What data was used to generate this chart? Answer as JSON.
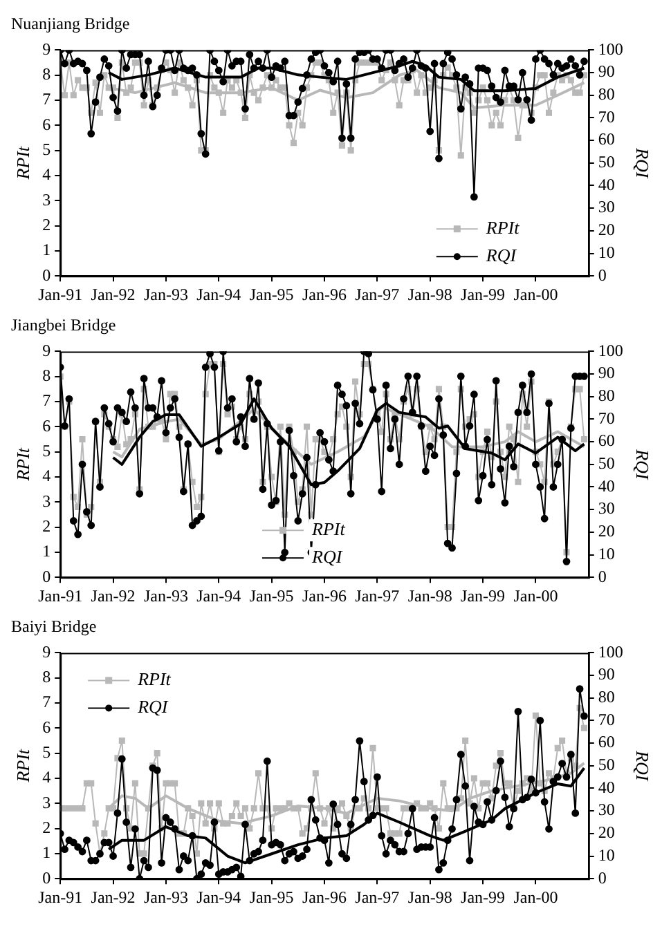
{
  "chart_data": [
    {
      "type": "line",
      "title": "Nuanjiang Bridge",
      "ylabel": "RPIt",
      "y2label": "RQI",
      "legend": "bottom right",
      "x": [
        "1991-01",
        "1991-02",
        "1991-03",
        "1991-04",
        "1991-05",
        "1991-06",
        "1991-07",
        "1991-08",
        "1991-09",
        "1991-10",
        "1991-11",
        "1991-12",
        "1992-01",
        "1992-02",
        "1992-03",
        "1992-04",
        "1992-05",
        "1992-06",
        "1992-07",
        "1992-08",
        "1992-09",
        "1992-10",
        "1992-11",
        "1992-12",
        "1993-01",
        "1993-02",
        "1993-03",
        "1993-04",
        "1993-05",
        "1993-06",
        "1993-07",
        "1993-08",
        "1993-09",
        "1993-10",
        "1993-11",
        "1993-12",
        "1994-01",
        "1994-02",
        "1994-03",
        "1994-04",
        "1994-05",
        "1994-06",
        "1994-07",
        "1994-08",
        "1994-09",
        "1994-10",
        "1994-11",
        "1994-12",
        "1995-01",
        "1995-02",
        "1995-03",
        "1995-04",
        "1995-05",
        "1995-06",
        "1995-07",
        "1995-08",
        "1995-09",
        "1995-10",
        "1995-11",
        "1995-12",
        "1996-01",
        "1996-02",
        "1996-03",
        "1996-04",
        "1996-05",
        "1996-06",
        "1996-07",
        "1996-08",
        "1996-09",
        "1996-10",
        "1996-11",
        "1996-12",
        "1997-01",
        "1997-02",
        "1997-03",
        "1997-04",
        "1997-05",
        "1997-06",
        "1997-07",
        "1997-08",
        "1997-09",
        "1997-10",
        "1997-11",
        "1997-12",
        "1998-01",
        "1998-02",
        "1998-03",
        "1998-04",
        "1998-05",
        "1998-06",
        "1998-07",
        "1998-08",
        "1998-09",
        "1998-10",
        "1998-11",
        "1998-12",
        "1999-01",
        "1999-02",
        "1999-03",
        "1999-04",
        "1999-05",
        "1999-06",
        "1999-07",
        "1999-08",
        "1999-09",
        "1999-10",
        "1999-11",
        "1999-12",
        "2000-01",
        "2000-02",
        "2000-03",
        "2000-04",
        "2000-05",
        "2000-06",
        "2000-07",
        "2000-08",
        "2000-09",
        "2000-10",
        "2000-11",
        "2000-12"
      ],
      "xlim": [
        "1991-01",
        "2001-01"
      ],
      "xticks": [
        {
          "value": "1991-01",
          "label": "Jan-91"
        },
        {
          "value": "1992-01",
          "label": "Jan-92"
        },
        {
          "value": "1993-01",
          "label": "Jan-93"
        },
        {
          "value": "1994-01",
          "label": "Jan-94"
        },
        {
          "value": "1995-01",
          "label": "Jan-95"
        },
        {
          "value": "1996-01",
          "label": "Jan-96"
        },
        {
          "value": "1997-01",
          "label": "Jan-97"
        },
        {
          "value": "1998-01",
          "label": "Jan-98"
        },
        {
          "value": "1999-01",
          "label": "Jan-99"
        },
        {
          "value": "2000-01",
          "label": "Jan-00"
        }
      ],
      "ylim": [
        0,
        9
      ],
      "yticks": [
        0,
        1,
        2,
        3,
        4,
        5,
        6,
        7,
        8,
        9
      ],
      "y2lim": [
        0,
        100
      ],
      "y2ticks": [
        0,
        10,
        20,
        30,
        40,
        50,
        60,
        70,
        80,
        90,
        100
      ],
      "series": [
        {
          "name": "RPIt",
          "color": "#b8b8b8",
          "marker": "square",
          "values": [
            8.5,
            7.2,
            8.5,
            7.2,
            7.8,
            7.5,
            7.5,
            6.5,
            7.7,
            6.5,
            8.0,
            7.5,
            7.5,
            6.3,
            8.5,
            7.3,
            7.5,
            8.5,
            8.5,
            6.8,
            7.8,
            6.8,
            7.5,
            8.2,
            8.5,
            8.2,
            7.3,
            8.5,
            7.8,
            7.5,
            6.8,
            7.8,
            5.0,
            5.0,
            8.0,
            7.5,
            7.3,
            6.5,
            7.8,
            7.5,
            7.8,
            7.3,
            6.3,
            8.0,
            7.3,
            7.0,
            7.5,
            8.0,
            7.5,
            7.8,
            7.5,
            7.5,
            6.0,
            5.3,
            6.5,
            6.0,
            7.5,
            8.0,
            8.5,
            8.5,
            8.0,
            7.8,
            6.5,
            7.3,
            5.2,
            7.3,
            5.0,
            7.8,
            8.5,
            8.5,
            8.5,
            8.5,
            8.5,
            7.8,
            8.2,
            8.5,
            7.8,
            6.8,
            7.8,
            7.8,
            8.2,
            7.3,
            8.0,
            7.3,
            7.5,
            7.8,
            5.0,
            8.0,
            8.3,
            8.0,
            7.5,
            4.8,
            7.5,
            7.3,
            6.5,
            7.0,
            7.5,
            7.0,
            6.0,
            6.5,
            6.0,
            7.0,
            7.5,
            7.0,
            5.5,
            6.8,
            6.8,
            6.5,
            7.5,
            8.0,
            8.0,
            6.5,
            7.3,
            8.0,
            7.8,
            8.0,
            7.8,
            7.3,
            7.3,
            8.0
          ]
        },
        {
          "name": "RQI",
          "color": "#000000",
          "marker": "circle",
          "axis": "y2",
          "values": [
            100,
            94,
            100,
            94,
            95,
            94,
            91,
            63,
            77,
            88,
            96,
            93,
            79,
            73,
            100,
            92,
            98,
            98,
            98,
            80,
            95,
            75,
            80,
            92,
            100,
            100,
            91,
            100,
            92,
            91,
            92,
            89,
            63,
            54,
            100,
            95,
            91,
            86,
            100,
            93,
            95,
            95,
            74,
            98,
            92,
            95,
            92,
            100,
            88,
            93,
            92,
            95,
            71,
            71,
            77,
            83,
            89,
            96,
            99,
            100,
            93,
            90,
            86,
            95,
            61,
            85,
            61,
            96,
            99,
            99,
            100,
            96,
            96,
            92,
            100,
            100,
            91,
            94,
            96,
            88,
            92,
            100,
            93,
            92,
            64,
            94,
            52,
            94,
            99,
            96,
            89,
            74,
            88,
            85,
            35,
            92,
            92,
            91,
            84,
            79,
            77,
            91,
            84,
            84,
            78,
            90,
            78,
            69,
            96,
            100,
            96,
            94,
            89,
            94,
            92,
            93,
            96,
            93,
            89,
            95
          ]
        },
        {
          "color": "#b8b8b8",
          "marker": "none",
          "x": [
            "1991-12",
            "1992-06",
            "1993-03",
            "1993-10",
            "1994-06",
            "1995-01",
            "1995-07",
            "1995-12",
            "1996-06",
            "1996-12",
            "1997-06",
            "1997-10",
            "1998-03",
            "1998-08",
            "1998-11",
            "1999-06",
            "2000-01",
            "2000-06",
            "2000-12"
          ],
          "values": [
            7.5,
            7.3,
            7.7,
            7.3,
            7.3,
            7.5,
            7.0,
            7.4,
            7.1,
            7.3,
            8.0,
            8.2,
            7.5,
            7.3,
            6.7,
            6.8,
            6.8,
            7.2,
            7.7
          ]
        },
        {
          "color": "#000000",
          "marker": "none",
          "axis": "y2",
          "x": [
            "1991-12",
            "1992-03",
            "1992-09",
            "1993-03",
            "1993-10",
            "1994-06",
            "1994-10",
            "1995-01",
            "1995-07",
            "1995-12",
            "1996-06",
            "1996-12",
            "1997-06",
            "1997-09",
            "1997-12",
            "1998-03",
            "1998-08",
            "1998-11",
            "1999-06",
            "2000-01",
            "2000-06",
            "2000-12"
          ],
          "values": [
            90,
            87,
            89,
            92,
            88,
            88,
            92,
            92,
            89,
            88,
            87,
            90,
            93,
            95,
            93,
            88,
            87,
            82,
            82,
            83,
            88,
            92
          ]
        }
      ]
    },
    {
      "type": "line",
      "title": "Jiangbei Bridge",
      "ylabel": "RPIt",
      "y2label": "RQI",
      "legend": "bottom",
      "x": [
        "1991-01",
        "1991-02",
        "1991-03",
        "1991-04",
        "1991-05",
        "1991-06",
        "1991-07",
        "1991-08",
        "1991-09",
        "1991-10",
        "1991-11",
        "1991-12",
        "1992-01",
        "1992-02",
        "1992-03",
        "1992-04",
        "1992-05",
        "1992-06",
        "1992-07",
        "1992-08",
        "1992-09",
        "1992-10",
        "1992-11",
        "1992-12",
        "1993-01",
        "1993-02",
        "1993-03",
        "1993-04",
        "1993-05",
        "1993-06",
        "1993-07",
        "1993-08",
        "1993-09",
        "1993-10",
        "1993-11",
        "1993-12",
        "1994-01",
        "1994-02",
        "1994-03",
        "1994-04",
        "1994-05",
        "1994-06",
        "1994-07",
        "1994-08",
        "1994-09",
        "1994-10",
        "1994-11",
        "1994-12",
        "1995-01",
        "1995-02",
        "1995-03",
        "1995-04",
        "1995-05",
        "1995-06",
        "1995-07",
        "1995-08",
        "1995-09",
        "1995-10",
        "1995-11",
        "1995-12",
        "1996-01",
        "1996-02",
        "1996-03",
        "1996-04",
        "1996-05",
        "1996-06",
        "1996-07",
        "1996-08",
        "1996-09",
        "1996-10",
        "1996-11",
        "1996-12",
        "1997-01",
        "1997-02",
        "1997-03",
        "1997-04",
        "1997-05",
        "1997-06",
        "1997-07",
        "1997-08",
        "1997-09",
        "1997-10",
        "1997-11",
        "1997-12",
        "1998-01",
        "1998-02",
        "1998-03",
        "1998-04",
        "1998-05",
        "1998-06",
        "1998-07",
        "1998-08",
        "1998-09",
        "1998-10",
        "1998-11",
        "1998-12",
        "1999-01",
        "1999-02",
        "1999-03",
        "1999-04",
        "1999-05",
        "1999-06",
        "1999-07",
        "1999-08",
        "1999-09",
        "1999-10",
        "1999-11",
        "1999-12",
        "2000-01",
        "2000-02",
        "2000-03",
        "2000-04",
        "2000-05",
        "2000-06",
        "2000-07",
        "2000-08",
        "2000-09",
        "2000-10",
        "2000-11",
        "2000-12"
      ],
      "xlim": [
        "1991-01",
        "2001-01"
      ],
      "xticks": [
        {
          "value": "1991-01",
          "label": "Jan-91"
        },
        {
          "value": "1992-01",
          "label": "Jan-92"
        },
        {
          "value": "1993-01",
          "label": "Jan-93"
        },
        {
          "value": "1994-01",
          "label": "Jan-94"
        },
        {
          "value": "1995-01",
          "label": "Jan-95"
        },
        {
          "value": "1996-01",
          "label": "Jan-96"
        },
        {
          "value": "1997-01",
          "label": "Jan-97"
        },
        {
          "value": "1998-01",
          "label": "Jan-98"
        },
        {
          "value": "1999-01",
          "label": "Jan-99"
        },
        {
          "value": "2000-01",
          "label": "Jan-00"
        }
      ],
      "ylim": [
        0,
        9
      ],
      "yticks": [
        0,
        1,
        2,
        3,
        4,
        5,
        6,
        7,
        8,
        9
      ],
      "y2lim": [
        0,
        100
      ],
      "y2ticks": [
        0,
        10,
        20,
        30,
        40,
        50,
        60,
        70,
        80,
        90,
        100
      ],
      "series": [
        {
          "name": "RPIt",
          "color": "#b8b8b8",
          "marker": "square",
          "values": [
            8.0,
            6.0,
            7.0,
            3.2,
            2.8,
            5.5,
            2.5,
            2.8,
            6.2,
            3.8,
            6.5,
            6.0,
            5.5,
            5.2,
            6.5,
            5.3,
            5.5,
            6.5,
            3.5,
            7.5,
            6.0,
            6.0,
            6.3,
            6.3,
            5.5,
            7.3,
            7.3,
            6.0,
            3.5,
            5.3,
            3.8,
            2.8,
            3.2,
            7.3,
            8.5,
            8.5,
            5.0,
            8.5,
            6.5,
            6.8,
            5.5,
            6.0,
            5.5,
            7.3,
            6.3,
            7.0,
            3.8,
            6.0,
            4.0,
            3.0,
            6.0,
            2.5,
            6.0,
            5.0,
            3.0,
            3.5,
            6.0,
            2.5,
            5.5,
            5.5,
            5.0,
            4.8,
            5.5,
            6.5,
            6.8,
            6.0,
            4.0,
            7.8,
            6.5,
            8.5,
            8.5,
            7.5,
            6.5,
            5.8,
            7.3,
            5.5,
            6.5,
            5.5,
            7.0,
            7.5,
            6.5,
            7.5,
            6.0,
            5.0,
            6.0,
            5.5,
            7.5,
            6.0,
            2.0,
            2.0,
            5.0,
            7.5,
            6.0,
            6.3,
            6.5,
            4.0,
            5.0,
            5.8,
            4.8,
            7.0,
            5.0,
            4.0,
            6.0,
            5.5,
            3.8,
            7.3,
            6.0,
            7.8,
            5.0,
            4.5,
            3.8,
            7.0,
            4.5,
            5.0,
            5.5,
            1.0,
            6.0,
            7.5,
            7.5,
            5.5
          ]
        },
        {
          "name": "RQI",
          "color": "#000000",
          "marker": "circle",
          "axis": "y2",
          "values": [
            93,
            67,
            79,
            25,
            19,
            50,
            29,
            23,
            69,
            40,
            75,
            68,
            60,
            75,
            73,
            69,
            82,
            75,
            37,
            88,
            75,
            75,
            71,
            87,
            64,
            75,
            79,
            62,
            38,
            59,
            23,
            25,
            27,
            93,
            99,
            93,
            56,
            100,
            75,
            79,
            60,
            71,
            58,
            88,
            70,
            86,
            39,
            68,
            32,
            34,
            60,
            11,
            65,
            45,
            25,
            37,
            53,
            11,
            41,
            64,
            60,
            52,
            47,
            85,
            81,
            76,
            37,
            77,
            68,
            100,
            99,
            83,
            70,
            38,
            85,
            57,
            70,
            50,
            79,
            89,
            73,
            89,
            67,
            47,
            58,
            54,
            79,
            63,
            15,
            13,
            46,
            89,
            58,
            67,
            81,
            34,
            45,
            61,
            41,
            87,
            48,
            33,
            58,
            49,
            73,
            85,
            73,
            90,
            50,
            40,
            26,
            77,
            40,
            50,
            61,
            7,
            66,
            89,
            89,
            89
          ]
        },
        {
          "color": "#b8b8b8",
          "marker": "none",
          "x": [
            "1992-01",
            "1992-03",
            "1992-07",
            "1993-01",
            "1993-04",
            "1993-09",
            "1994-01",
            "1994-09",
            "1995-03",
            "1995-10",
            "1996-04",
            "1996-10",
            "1997-02",
            "1997-06",
            "1998-01",
            "1998-06",
            "1999-01",
            "1999-06",
            "1999-09",
            "2000-01",
            "2000-06",
            "2000-12"
          ],
          "values": [
            5.0,
            4.8,
            5.9,
            6.2,
            6.3,
            5.3,
            5.5,
            6.7,
            5.6,
            4.5,
            5.0,
            5.6,
            6.8,
            6.5,
            6.0,
            5.2,
            5.2,
            5.4,
            5.8,
            5.4,
            5.8,
            5.2
          ]
        },
        {
          "color": "#000000",
          "marker": "none",
          "axis": "y2",
          "x": [
            "1992-01",
            "1992-03",
            "1992-07",
            "1992-10",
            "1993-01",
            "1993-04",
            "1993-09",
            "1994-01",
            "1994-06",
            "1994-09",
            "1995-01",
            "1995-05",
            "1995-10",
            "1996-01",
            "1996-04",
            "1996-09",
            "1997-01",
            "1997-03",
            "1997-06",
            "1997-12",
            "1998-03",
            "1998-05",
            "1998-09",
            "1999-03",
            "1999-06",
            "1999-09",
            "2000-01",
            "2000-06",
            "2000-10",
            "2000-12"
          ],
          "values": [
            53,
            50,
            62,
            69,
            72,
            72,
            58,
            62,
            68,
            79,
            66,
            58,
            41,
            42,
            47,
            57,
            74,
            77,
            73,
            71,
            66,
            67,
            57,
            55,
            52,
            59,
            55,
            62,
            56,
            59
          ]
        }
      ]
    },
    {
      "type": "line",
      "title": "Baiyi Bridge",
      "ylabel": "RPIt",
      "y2label": "RQI",
      "legend": "top left",
      "x": [
        "1991-01",
        "1991-02",
        "1991-03",
        "1991-04",
        "1991-05",
        "1991-06",
        "1991-07",
        "1991-08",
        "1991-09",
        "1991-10",
        "1991-11",
        "1991-12",
        "1992-01",
        "1992-02",
        "1992-03",
        "1992-04",
        "1992-05",
        "1992-06",
        "1992-07",
        "1992-08",
        "1992-09",
        "1992-10",
        "1992-11",
        "1992-12",
        "1993-01",
        "1993-02",
        "1993-03",
        "1993-04",
        "1993-05",
        "1993-06",
        "1993-07",
        "1993-08",
        "1993-09",
        "1993-10",
        "1993-11",
        "1993-12",
        "1994-01",
        "1994-02",
        "1994-03",
        "1994-04",
        "1994-05",
        "1994-06",
        "1994-07",
        "1994-08",
        "1994-09",
        "1994-10",
        "1994-11",
        "1994-12",
        "1995-01",
        "1995-02",
        "1995-03",
        "1995-04",
        "1995-05",
        "1995-06",
        "1995-07",
        "1995-08",
        "1995-09",
        "1995-10",
        "1995-11",
        "1995-12",
        "1996-01",
        "1996-02",
        "1996-03",
        "1996-04",
        "1996-05",
        "1996-06",
        "1996-07",
        "1996-08",
        "1996-09",
        "1996-10",
        "1996-11",
        "1996-12",
        "1997-01",
        "1997-02",
        "1997-03",
        "1997-04",
        "1997-05",
        "1997-06",
        "1997-07",
        "1997-08",
        "1997-09",
        "1997-10",
        "1997-11",
        "1997-12",
        "1998-01",
        "1998-02",
        "1998-03",
        "1998-04",
        "1998-05",
        "1998-06",
        "1998-07",
        "1998-08",
        "1998-09",
        "1998-10",
        "1998-11",
        "1998-12",
        "1999-01",
        "1999-02",
        "1999-03",
        "1999-04",
        "1999-05",
        "1999-06",
        "1999-07",
        "1999-08",
        "1999-09",
        "1999-10",
        "1999-11",
        "1999-12",
        "2000-01",
        "2000-02",
        "2000-03",
        "2000-04",
        "2000-05",
        "2000-06",
        "2000-07",
        "2000-08",
        "2000-09",
        "2000-10",
        "2000-11",
        "2000-12"
      ],
      "xlim": [
        "1991-01",
        "2001-01"
      ],
      "xticks": [
        {
          "value": "1991-01",
          "label": "Jan-91"
        },
        {
          "value": "1992-01",
          "label": "Jan-92"
        },
        {
          "value": "1993-01",
          "label": "Jan-93"
        },
        {
          "value": "1994-01",
          "label": "Jan-94"
        },
        {
          "value": "1995-01",
          "label": "Jan-95"
        },
        {
          "value": "1996-01",
          "label": "Jan-96"
        },
        {
          "value": "1997-01",
          "label": "Jan-97"
        },
        {
          "value": "1998-01",
          "label": "Jan-98"
        },
        {
          "value": "1999-01",
          "label": "Jan-99"
        },
        {
          "value": "2000-01",
          "label": "Jan-00"
        }
      ],
      "ylim": [
        0,
        9
      ],
      "yticks": [
        0,
        1,
        2,
        3,
        4,
        5,
        6,
        7,
        8,
        9
      ],
      "y2lim": [
        0,
        100
      ],
      "y2ticks": [
        0,
        10,
        20,
        30,
        40,
        50,
        60,
        70,
        80,
        90,
        100
      ],
      "series": [
        {
          "name": "RPIt",
          "color": "#b8b8b8",
          "marker": "square",
          "values": [
            2.8,
            2.8,
            2.8,
            2.8,
            2.8,
            2.8,
            3.8,
            3.8,
            2.2,
            1.0,
            1.8,
            2.8,
            2.8,
            4.8,
            5.5,
            2.8,
            2.0,
            3.8,
            1.0,
            1.0,
            2.8,
            4.5,
            5.0,
            2.0,
            3.8,
            3.8,
            3.8,
            1.8,
            1.8,
            2.8,
            2.5,
            1.0,
            3.0,
            2.2,
            3.0,
            2.0,
            3.0,
            2.2,
            2.2,
            2.5,
            3.0,
            2.5,
            2.8,
            2.0,
            2.8,
            4.2,
            2.8,
            2.8,
            2.0,
            2.8,
            2.8,
            2.8,
            3.0,
            2.8,
            2.8,
            1.8,
            2.0,
            2.8,
            4.2,
            2.8,
            2.2,
            2.8,
            2.0,
            2.8,
            3.0,
            2.5,
            2.0,
            2.8,
            2.8,
            3.2,
            2.8,
            5.2,
            2.8,
            2.8,
            2.8,
            1.8,
            1.8,
            1.8,
            2.8,
            2.8,
            2.8,
            3.0,
            2.8,
            2.8,
            3.0,
            2.8,
            2.0,
            3.8,
            2.8,
            2.8,
            2.8,
            3.2,
            5.5,
            3.0,
            4.0,
            2.8,
            3.8,
            3.8,
            3.2,
            4.5,
            5.0,
            3.8,
            3.8,
            2.8,
            3.5,
            3.8,
            4.0,
            3.5,
            6.5,
            3.8,
            3.5,
            4.2,
            4.0,
            5.2,
            5.5,
            4.2,
            4.8,
            4.5,
            6.8,
            6.0
          ]
        },
        {
          "name": "RQI",
          "color": "#000000",
          "marker": "circle",
          "axis": "y2",
          "values": [
            20,
            13,
            17,
            16,
            14,
            12,
            17,
            8,
            8,
            11,
            16,
            16,
            10,
            29,
            53,
            25,
            5,
            22,
            0,
            8,
            5,
            49,
            48,
            7,
            27,
            25,
            22,
            4,
            10,
            8,
            19,
            0,
            2,
            7,
            6,
            25,
            2,
            3,
            3,
            4,
            5,
            1,
            24,
            8,
            11,
            12,
            17,
            52,
            15,
            16,
            15,
            8,
            11,
            12,
            9,
            10,
            13,
            35,
            26,
            18,
            17,
            7,
            33,
            24,
            11,
            9,
            24,
            35,
            61,
            43,
            26,
            28,
            45,
            19,
            11,
            17,
            15,
            12,
            12,
            20,
            31,
            13,
            14,
            14,
            14,
            27,
            4,
            7,
            17,
            22,
            35,
            55,
            41,
            8,
            32,
            25,
            24,
            34,
            26,
            39,
            52,
            36,
            23,
            31,
            74,
            35,
            36,
            44,
            38,
            70,
            34,
            22,
            43,
            45,
            51,
            45,
            55,
            29,
            84,
            72
          ]
        },
        {
          "color": "#b8b8b8",
          "marker": "none",
          "x": [
            "1991-12",
            "1992-03",
            "1992-06",
            "1992-09",
            "1993-01",
            "1993-06",
            "1994-01",
            "1994-06",
            "1995-01",
            "1995-07",
            "1996-01",
            "1996-06",
            "1997-01",
            "1997-06",
            "1998-01",
            "1998-06",
            "1998-10",
            "1999-03",
            "1999-09",
            "2000-03",
            "2000-09",
            "2000-12"
          ],
          "values": [
            2.8,
            3.3,
            3.2,
            2.8,
            3.3,
            2.8,
            2.3,
            2.2,
            2.5,
            2.9,
            2.8,
            2.6,
            3.2,
            3.1,
            2.8,
            2.7,
            3.2,
            3.5,
            3.7,
            3.9,
            4.2,
            4.6
          ]
        },
        {
          "color": "#000000",
          "marker": "none",
          "axis": "y2",
          "x": [
            "1991-12",
            "1992-03",
            "1992-08",
            "1993-01",
            "1993-06",
            "1993-10",
            "1994-03",
            "1994-07",
            "1995-01",
            "1995-07",
            "1996-01",
            "1996-06",
            "1996-10",
            "1997-01",
            "1997-06",
            "1998-01",
            "1998-04",
            "1998-09",
            "1999-03",
            "1999-06",
            "2000-01",
            "2000-06",
            "2000-09",
            "2000-12"
          ],
          "values": [
            13,
            17,
            17,
            23,
            19,
            18,
            10,
            7,
            11,
            15,
            18,
            19,
            24,
            29,
            25,
            19,
            17,
            21,
            26,
            31,
            38,
            42,
            41,
            49
          ]
        }
      ]
    }
  ]
}
